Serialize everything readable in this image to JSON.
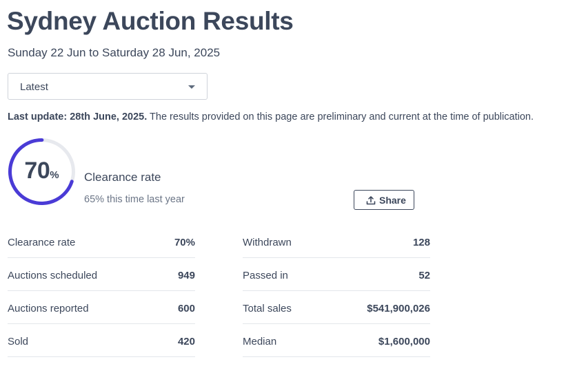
{
  "header": {
    "title": "Sydney Auction Results",
    "date_range": "Sunday 22 Jun to Saturday 28 Jun, 2025"
  },
  "filter": {
    "selected": "Latest",
    "icon": "chevron-down-icon"
  },
  "update": {
    "label": "Last update: 28th June, 2025.",
    "text": " The results provided on this page are preliminary and current at the time of publication."
  },
  "gauge": {
    "value": "70",
    "unit": "%",
    "fraction": 0.7,
    "label": "Clearance rate",
    "comparison": "65% this time last year",
    "color": "#4a3bd6",
    "track_color": "#e7e9ee"
  },
  "share": {
    "label": "Share",
    "icon": "share-upload-icon"
  },
  "stats": {
    "left": [
      {
        "label": "Clearance rate",
        "value": "70%"
      },
      {
        "label": "Auctions scheduled",
        "value": "949"
      },
      {
        "label": "Auctions reported",
        "value": "600"
      },
      {
        "label": "Sold",
        "value": "420"
      }
    ],
    "right": [
      {
        "label": "Withdrawn",
        "value": "128"
      },
      {
        "label": "Passed in",
        "value": "52"
      },
      {
        "label": "Total sales",
        "value": "$541,900,026"
      },
      {
        "label": "Median",
        "value": "$1,600,000"
      }
    ]
  }
}
